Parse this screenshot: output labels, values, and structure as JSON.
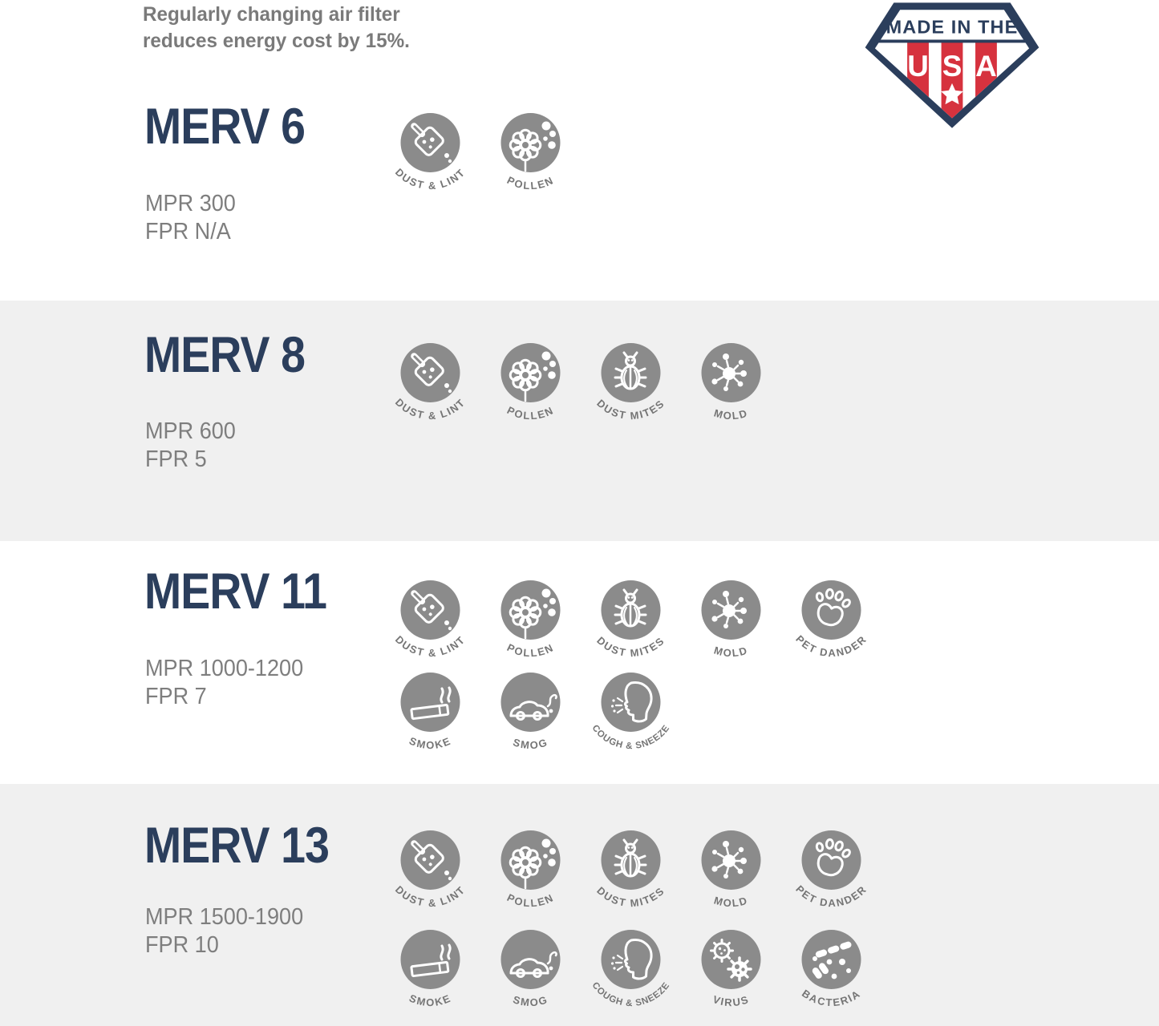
{
  "page": {
    "tagline_line1": "Regularly changing air filter",
    "tagline_line2": "reduces energy cost by 15%."
  },
  "badge": {
    "top_text": "MADE IN THE",
    "letters": [
      "U",
      "S",
      "A"
    ]
  },
  "colors": {
    "navy": "#2b3e5c",
    "red": "#d6323e",
    "icon_gray": "#8b8b8b",
    "label_gray": "#757575",
    "text_gray": "#7e7e7e",
    "band_gray": "#f0f0f0"
  },
  "sections": [
    {
      "title": "MERV 6",
      "mpr": "MPR 300",
      "fpr": "FPR N/A"
    },
    {
      "title": "MERV 8",
      "mpr": "MPR 600",
      "fpr": "FPR 5"
    },
    {
      "title": "MERV 11",
      "mpr": "MPR 1000-1200",
      "fpr": "FPR 7"
    },
    {
      "title": "MERV 13",
      "mpr": "MPR 1500-1900",
      "fpr": "FPR 10"
    }
  ],
  "icons": {
    "dust-lint": {
      "label": "DUST & LINT"
    },
    "pollen": {
      "label": "POLLEN"
    },
    "dust-mites": {
      "label": "DUST MITES"
    },
    "mold": {
      "label": "MOLD"
    },
    "pet-dander": {
      "label": "PET DANDER"
    },
    "smoke": {
      "label": "SMOKE"
    },
    "smog": {
      "label": "SMOG"
    },
    "cough-sneeze": {
      "label": "COUGH & SNEEZE"
    },
    "virus": {
      "label": "VIRUS"
    },
    "bacteria": {
      "label": "BACTERIA"
    }
  }
}
